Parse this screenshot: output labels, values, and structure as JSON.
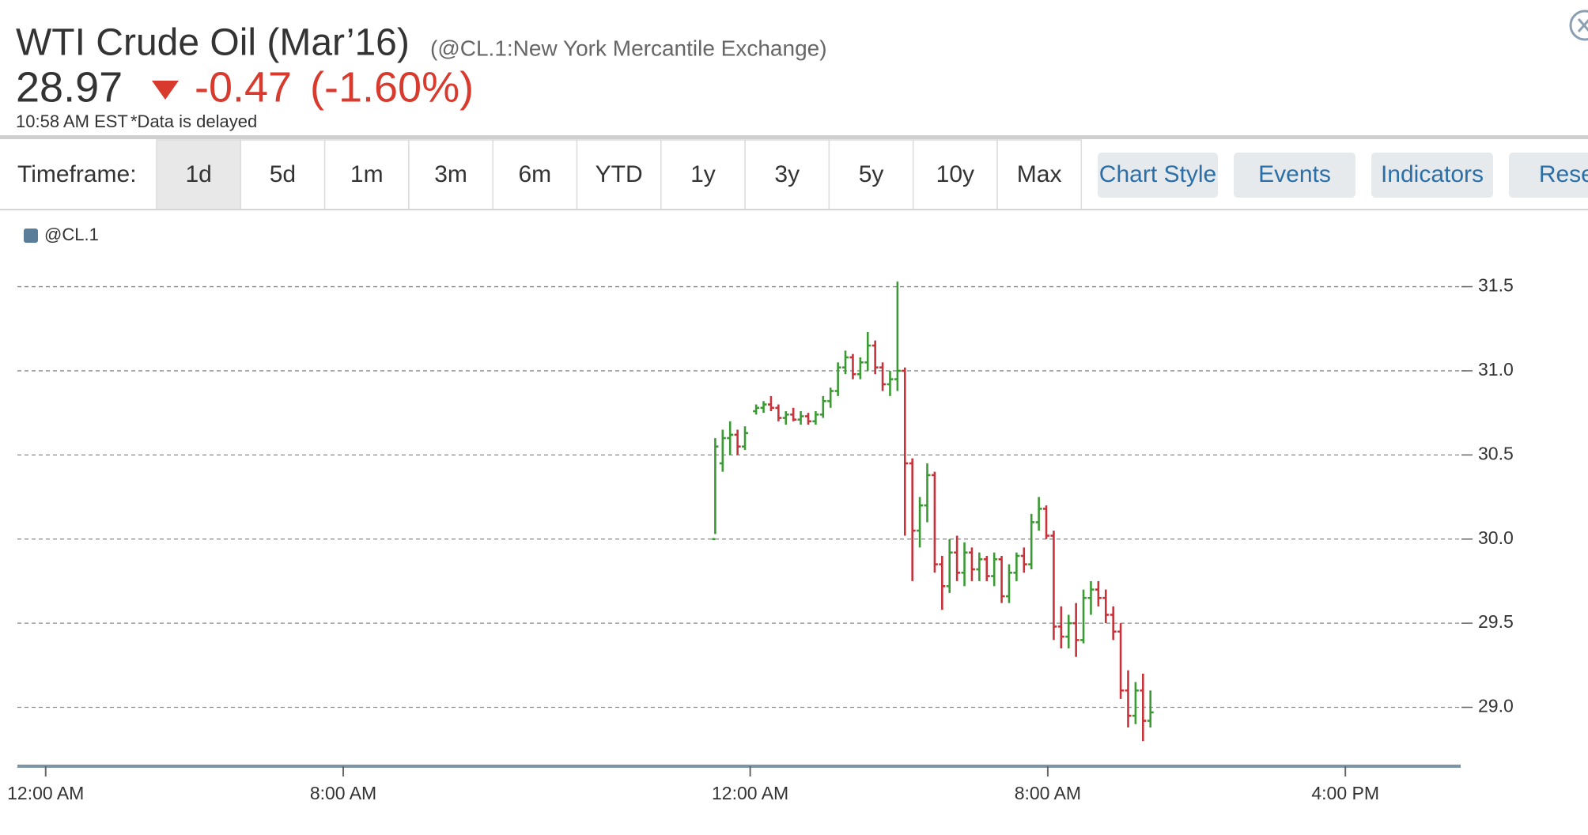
{
  "header": {
    "title": "WTI Crude Oil (Mar’16)",
    "symbol": "(@CL.1:New York Mercantile Exchange)",
    "price": "28.97",
    "change": "-0.47",
    "change_percent": "(-1.60%)",
    "time": "10:58 AM EST",
    "delay_note": "*Data is delayed"
  },
  "toolbar": {
    "label": "Timeframe:",
    "timeframes": [
      "1d",
      "5d",
      "1m",
      "3m",
      "6m",
      "YTD",
      "1y",
      "3y",
      "5y",
      "10y",
      "Max"
    ],
    "active_index": 0,
    "tools": [
      "Chart Style",
      "Events",
      "Indicators",
      "Reset"
    ]
  },
  "chart_data": {
    "type": "ohlc",
    "series": [
      {
        "name": "@CL.1",
        "color": "#5a7d99",
        "up_color": "#3c9a34",
        "down_color": "#c8323a",
        "x": [
          18.0,
          18.2,
          18.4,
          18.6,
          18.8,
          19.1,
          19.3,
          19.5,
          19.7,
          19.9,
          20.1,
          20.3,
          20.5,
          20.7,
          20.9,
          21.1,
          21.3,
          21.5,
          21.7,
          21.9,
          22.1,
          22.3,
          22.5,
          22.7,
          22.9,
          23.1,
          23.3,
          23.5,
          23.7,
          23.9,
          24.1,
          24.3,
          24.5,
          24.7,
          24.9,
          25.1,
          25.3,
          25.5,
          25.7,
          25.9,
          26.1,
          26.3,
          26.5,
          26.7,
          26.9,
          27.1,
          27.3,
          27.5,
          27.7,
          27.9,
          28.1,
          28.3,
          28.5,
          28.7,
          28.9,
          29.1,
          29.3,
          29.5,
          29.7
        ],
        "open": [
          30.0,
          30.45,
          30.6,
          30.62,
          30.55,
          30.76,
          30.78,
          30.8,
          30.78,
          30.72,
          30.74,
          30.71,
          30.73,
          30.7,
          30.74,
          30.82,
          30.88,
          31.02,
          31.08,
          30.98,
          31.05,
          31.15,
          31.02,
          30.92,
          30.95,
          31.0,
          30.45,
          30.05,
          30.2,
          30.38,
          29.85,
          29.72,
          29.92,
          29.8,
          29.92,
          29.82,
          29.88,
          29.78,
          29.88,
          29.66,
          29.8,
          29.9,
          29.85,
          30.1,
          30.18,
          30.02,
          29.48,
          29.42,
          29.5,
          29.4,
          29.65,
          29.7,
          29.65,
          29.55,
          29.45,
          29.1,
          28.95,
          29.1,
          28.92
        ],
        "high": [
          30.6,
          30.65,
          30.7,
          30.65,
          30.67,
          30.8,
          30.82,
          30.85,
          30.8,
          30.76,
          30.78,
          30.76,
          30.75,
          30.76,
          30.85,
          30.9,
          31.05,
          31.12,
          31.1,
          31.08,
          31.23,
          31.18,
          31.05,
          31.0,
          31.53,
          31.02,
          30.48,
          30.25,
          30.45,
          30.4,
          29.9,
          30.0,
          30.02,
          29.98,
          29.95,
          29.92,
          29.9,
          29.92,
          29.9,
          29.85,
          29.92,
          29.95,
          30.15,
          30.25,
          30.2,
          30.05,
          29.6,
          29.55,
          29.62,
          29.7,
          29.75,
          29.75,
          29.7,
          29.6,
          29.5,
          29.22,
          29.15,
          29.2,
          29.1
        ],
        "low": [
          30.03,
          30.4,
          30.5,
          30.5,
          30.53,
          30.74,
          30.75,
          30.76,
          30.7,
          30.68,
          30.7,
          30.68,
          30.68,
          30.68,
          30.72,
          30.78,
          30.85,
          30.98,
          30.95,
          30.95,
          31.0,
          30.98,
          30.88,
          30.85,
          30.88,
          30.02,
          29.75,
          29.95,
          30.1,
          29.8,
          29.58,
          29.68,
          29.75,
          29.72,
          29.75,
          29.75,
          29.75,
          29.72,
          29.62,
          29.62,
          29.75,
          29.8,
          29.82,
          30.05,
          30.0,
          29.4,
          29.35,
          29.35,
          29.3,
          29.38,
          29.55,
          29.6,
          29.5,
          29.4,
          29.05,
          28.88,
          28.9,
          28.8,
          28.88
        ],
        "close": [
          30.55,
          30.6,
          30.62,
          30.55,
          30.63,
          30.78,
          30.8,
          30.78,
          30.72,
          30.74,
          30.71,
          30.73,
          30.7,
          30.74,
          30.82,
          30.88,
          31.02,
          31.08,
          30.98,
          31.05,
          31.15,
          31.02,
          30.92,
          30.95,
          31.0,
          30.45,
          30.05,
          30.2,
          30.38,
          29.85,
          29.72,
          29.92,
          29.8,
          29.92,
          29.82,
          29.88,
          29.78,
          29.88,
          29.66,
          29.8,
          29.9,
          29.85,
          30.1,
          30.18,
          30.02,
          29.48,
          29.42,
          29.5,
          29.4,
          29.65,
          29.7,
          29.65,
          29.55,
          29.45,
          29.1,
          28.95,
          29.1,
          28.92,
          28.97
        ]
      }
    ],
    "xlim": [
      -0.76,
      38.04
    ],
    "xticks": [
      {
        "value": 0,
        "label": "12:00 AM"
      },
      {
        "value": 8,
        "label": "8:00 AM"
      },
      {
        "value": 18.94,
        "label": "12:00 AM"
      },
      {
        "value": 26.94,
        "label": "8:00 AM"
      },
      {
        "value": 34.94,
        "label": "4:00 PM"
      }
    ],
    "ylim": [
      28.65,
      31.7
    ],
    "yticks": [
      31.5,
      {
        "value": 31,
        "label": "31.0"
      },
      30.5,
      {
        "value": 30,
        "label": "30.0"
      },
      29.5,
      {
        "value": 29,
        "label": "29.0"
      }
    ],
    "grid": true
  }
}
